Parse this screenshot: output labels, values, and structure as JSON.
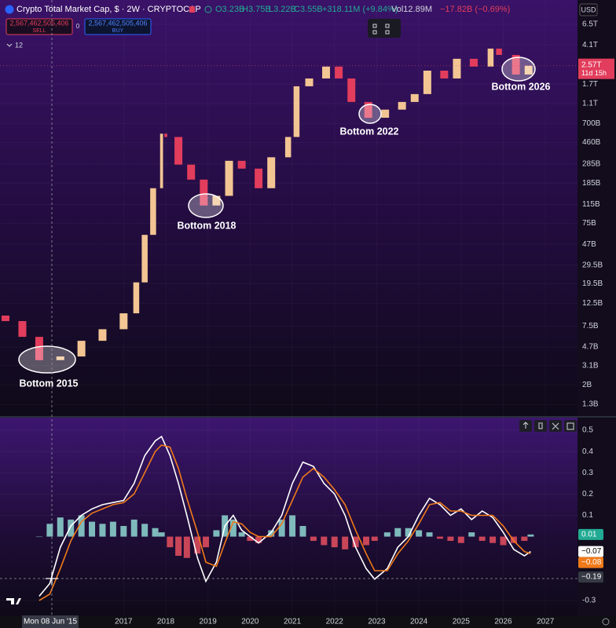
{
  "header": {
    "title": "Crypto Total Market Cap, $ · 2W · CRYPTOCAP",
    "open": "O3.23B",
    "high": "H3.75B",
    "low": "L3.22B",
    "close": "C3.55B",
    "change": "+318.11M (+9.84%)",
    "volume": "Vol12.89M",
    "volume_change": "−17.82B (−0.69%)",
    "sell_price": "2,567,462,505,406",
    "sell": "SELL",
    "spread": "0",
    "buy_price": "2,567,462,505,406",
    "buy": "BUY",
    "collapsed_count": "12",
    "currency": "USD"
  },
  "price_label": "2.57T",
  "countdown": "11d 15h",
  "crosshair_date": "Mon 08 Jun '15",
  "chart_data": [
    {
      "type": "candlestick",
      "log_scale": true,
      "grid": true,
      "up_color": "#f2c593",
      "down_color": "#e23d5c",
      "x": [
        2014.2,
        2014.6,
        2015.0,
        2015.5,
        2016.0,
        2016.5,
        2017.0,
        2017.3,
        2017.5,
        2017.7,
        2017.9,
        2018.0,
        2018.3,
        2018.6,
        2018.9,
        2019.2,
        2019.5,
        2019.8,
        2020.2,
        2020.5,
        2020.9,
        2021.1,
        2021.4,
        2021.8,
        2022.1,
        2022.4,
        2022.8,
        2023.2,
        2023.6,
        2023.9,
        2024.2,
        2024.6,
        2024.9,
        2025.3,
        2025.7,
        2025.9,
        2026.3,
        2026.6
      ],
      "open": [
        9500000000.0,
        8400000000.0,
        5900000000.0,
        3500000000.0,
        3800000000.0,
        5400000000.0,
        7000000000.0,
        10000000000.0,
        20000000000.0,
        58000000000.0,
        165000000000.0,
        560000000000.0,
        520000000000.0,
        280000000000.0,
        200000000000.0,
        112000000000.0,
        139000000000.0,
        305000000000.0,
        256000000000.0,
        165000000000.0,
        330000000000.0,
        520000000000.0,
        1620000000000.0,
        1930000000000.0,
        2520000000000.0,
        1930000000000.0,
        1140000000000.0,
        800000000000.0,
        960000000000.0,
        1140000000000.0,
        1360000000000.0,
        2300000000000.0,
        1930000000000.0,
        3000000000000.0,
        2520000000000.0,
        3770000000000.0,
        3270000000000.0,
        2110000000000.0
      ],
      "close": [
        8400000000.0,
        5900000000.0,
        3500000000.0,
        3800000000.0,
        5400000000.0,
        7000000000.0,
        10000000000.0,
        20000000000.0,
        58000000000.0,
        165000000000.0,
        560000000000.0,
        520000000000.0,
        280000000000.0,
        200000000000.0,
        112000000000.0,
        139000000000.0,
        305000000000.0,
        256000000000.0,
        165000000000.0,
        330000000000.0,
        520000000000.0,
        1620000000000.0,
        1930000000000.0,
        2520000000000.0,
        1930000000000.0,
        1140000000000.0,
        800000000000.0,
        960000000000.0,
        1140000000000.0,
        1360000000000.0,
        2300000000000.0,
        1930000000000.0,
        3000000000000.0,
        2520000000000.0,
        3770000000000.0,
        3270000000000.0,
        2110000000000.0,
        2570000000000.0
      ],
      "xlim": [
        2014.07,
        2027.76
      ],
      "ylim": [
        1000000000.0,
        11200000000000.0
      ],
      "yticks": [
        {
          "value": 6500000000000.0,
          "label": "6.5T"
        },
        {
          "value": 4100000000000.0,
          "label": "4.1T"
        },
        {
          "value": 1700000000000.0,
          "label": "1.7T"
        },
        {
          "value": 1100000000000.0,
          "label": "1.1T"
        },
        {
          "value": 700000000000.0,
          "label": "700B"
        },
        {
          "value": 460000000000.0,
          "label": "460B"
        },
        {
          "value": 285000000000.0,
          "label": "285B"
        },
        {
          "value": 185000000000.0,
          "label": "185B"
        },
        {
          "value": 115000000000.0,
          "label": "115B"
        },
        {
          "value": 75000000000.0,
          "label": "75B"
        },
        {
          "value": 47000000000.0,
          "label": "47B"
        },
        {
          "value": 29500000000.0,
          "label": "29.5B"
        },
        {
          "value": 19500000000.0,
          "label": "19.5B"
        },
        {
          "value": 12500000000.0,
          "label": "12.5B"
        },
        {
          "value": 7500000000.0,
          "label": "7.5B"
        },
        {
          "value": 4700000000.0,
          "label": "4.7B"
        },
        {
          "value": 3100000000.0,
          "label": "3.1B"
        },
        {
          "value": 2000000000.0,
          "label": "2B"
        },
        {
          "value": 1300000000.0,
          "label": "1.3B"
        }
      ],
      "annotations": [
        "Bottom 2015",
        "Bottom 2018",
        "Bottom 2022",
        "Bottom 2026"
      ]
    },
    {
      "type": "macd",
      "grid": true,
      "x": [
        2015.0,
        2015.25,
        2015.5,
        2015.75,
        2016.0,
        2016.25,
        2016.5,
        2016.75,
        2017.0,
        2017.25,
        2017.5,
        2017.75,
        2017.9,
        2018.1,
        2018.3,
        2018.5,
        2018.75,
        2018.95,
        2019.2,
        2019.4,
        2019.6,
        2019.8,
        2020.0,
        2020.2,
        2020.5,
        2020.75,
        2021.0,
        2021.25,
        2021.5,
        2021.75,
        2022.0,
        2022.25,
        2022.5,
        2022.75,
        2022.95,
        2023.25,
        2023.5,
        2023.75,
        2024.0,
        2024.25,
        2024.5,
        2024.75,
        2025.0,
        2025.25,
        2025.5,
        2025.75,
        2026.0,
        2026.25,
        2026.5,
        2026.65
      ],
      "series": [
        {
          "kind": "histogram",
          "color": "#8fd8d2",
          "negative_color": "#e8505f",
          "values": [
            0.0,
            0.06,
            0.09,
            0.08,
            0.1,
            0.07,
            0.06,
            0.07,
            0.05,
            0.08,
            0.06,
            0.04,
            0.02,
            -0.05,
            -0.09,
            -0.1,
            -0.08,
            -0.05,
            0.03,
            0.1,
            0.08,
            0.02,
            -0.02,
            -0.03,
            0.03,
            0.08,
            0.1,
            0.05,
            -0.02,
            -0.04,
            -0.05,
            -0.06,
            -0.05,
            -0.04,
            -0.02,
            0.02,
            0.04,
            0.04,
            0.03,
            0.02,
            -0.01,
            -0.02,
            -0.03,
            0.02,
            -0.02,
            -0.03,
            -0.04,
            -0.03,
            -0.02,
            0.01
          ]
        },
        {
          "kind": "line",
          "color": "#ffffff",
          "values": [
            -0.28,
            -0.22,
            -0.05,
            0.05,
            0.1,
            0.13,
            0.15,
            0.16,
            0.17,
            0.25,
            0.38,
            0.45,
            0.47,
            0.38,
            0.25,
            0.1,
            -0.1,
            -0.21,
            -0.12,
            0.05,
            0.1,
            0.03,
            0.0,
            -0.03,
            0.02,
            0.1,
            0.25,
            0.35,
            0.33,
            0.25,
            0.2,
            0.1,
            -0.05,
            -0.15,
            -0.2,
            -0.15,
            -0.05,
            0.0,
            0.1,
            0.18,
            0.15,
            0.1,
            0.13,
            0.08,
            0.12,
            0.09,
            0.02,
            -0.06,
            -0.09,
            -0.07
          ]
        },
        {
          "kind": "line",
          "color": "#f07a1a",
          "values": [
            -0.3,
            -0.27,
            -0.15,
            -0.02,
            0.07,
            0.11,
            0.13,
            0.15,
            0.16,
            0.2,
            0.3,
            0.4,
            0.43,
            0.42,
            0.32,
            0.18,
            0.02,
            -0.12,
            -0.14,
            -0.03,
            0.07,
            0.06,
            0.02,
            0.0,
            0.0,
            0.06,
            0.17,
            0.28,
            0.32,
            0.28,
            0.22,
            0.15,
            0.03,
            -0.08,
            -0.16,
            -0.16,
            -0.08,
            -0.02,
            0.06,
            0.15,
            0.16,
            0.12,
            0.12,
            0.1,
            0.1,
            0.1,
            0.05,
            -0.02,
            -0.07,
            -0.08
          ]
        }
      ],
      "xlim": [
        2014.07,
        2027.76
      ],
      "ylim": [
        -0.374,
        0.559
      ],
      "yticks": [
        0.5,
        0.4,
        0.3,
        0.2,
        0.1,
        -0.3
      ],
      "xticks": [
        2017,
        2018,
        2019,
        2020,
        2021,
        2022,
        2023,
        2024,
        2025,
        2026,
        2027
      ],
      "last_labels": [
        {
          "value": 0.01,
          "label": "0.01",
          "color": "#22ab94"
        },
        {
          "value": -0.07,
          "label": "−0.07",
          "color": "#ffffff"
        },
        {
          "value": -0.08,
          "label": "−0.08",
          "color": "#f07a1a"
        },
        {
          "value": -0.19,
          "label": "−0.19",
          "color": "#363a45"
        }
      ]
    }
  ]
}
